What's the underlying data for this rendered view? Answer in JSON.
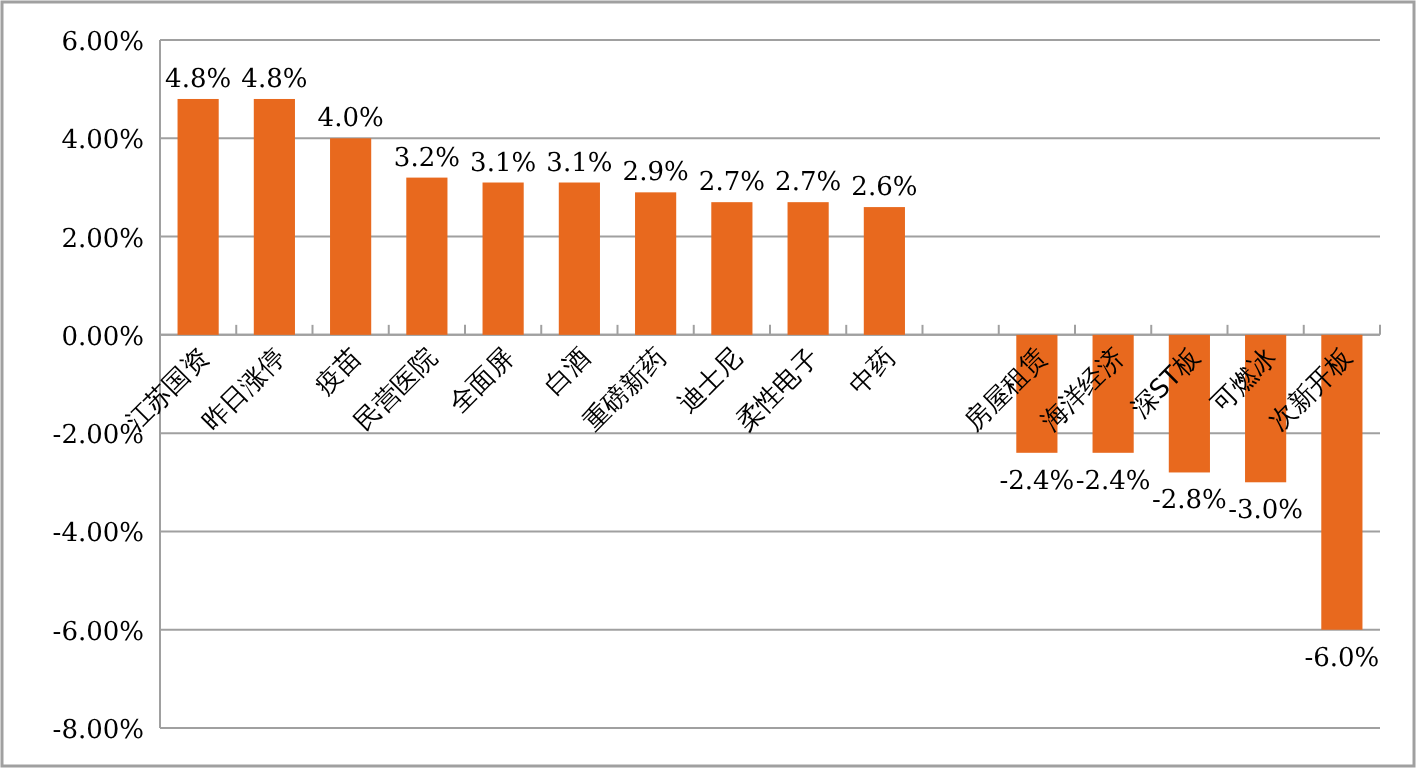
{
  "chart_data": {
    "type": "bar",
    "categories": [
      "江苏国资",
      "昨日涨停",
      "疫苗",
      "民营医院",
      "全面屏",
      "白酒",
      "重磅新药",
      "迪士尼",
      "柔性电子",
      "中药",
      null,
      "房屋租赁",
      "海洋经济",
      "深ST板",
      "可燃冰",
      "次新开板"
    ],
    "values": [
      4.8,
      4.8,
      4.0,
      3.2,
      3.1,
      3.1,
      2.9,
      2.7,
      2.7,
      2.6,
      null,
      -2.4,
      -2.4,
      -2.8,
      -3.0,
      -6.0
    ],
    "value_labels": [
      "4.8%",
      "4.8%",
      "4.0%",
      "3.2%",
      "3.1%",
      "3.1%",
      "2.9%",
      "2.7%",
      "2.7%",
      "2.6%",
      null,
      "-2.4%",
      "-2.4%",
      "-2.8%",
      "-3.0%",
      "-6.0%"
    ],
    "color": "#e8691e",
    "ylim": [
      -8,
      6
    ],
    "yticks": [
      {
        "value": -8,
        "label": "-8.00%"
      },
      {
        "value": -6,
        "label": "-6.00%"
      },
      {
        "value": -4,
        "label": "-4.00%"
      },
      {
        "value": -2,
        "label": "-2.00%"
      },
      {
        "value": 0,
        "label": "0.00%"
      },
      {
        "value": 2,
        "label": "2.00%"
      },
      {
        "value": 4,
        "label": "4.00%"
      },
      {
        "value": 6,
        "label": "6.00%"
      }
    ],
    "grid": "y"
  }
}
